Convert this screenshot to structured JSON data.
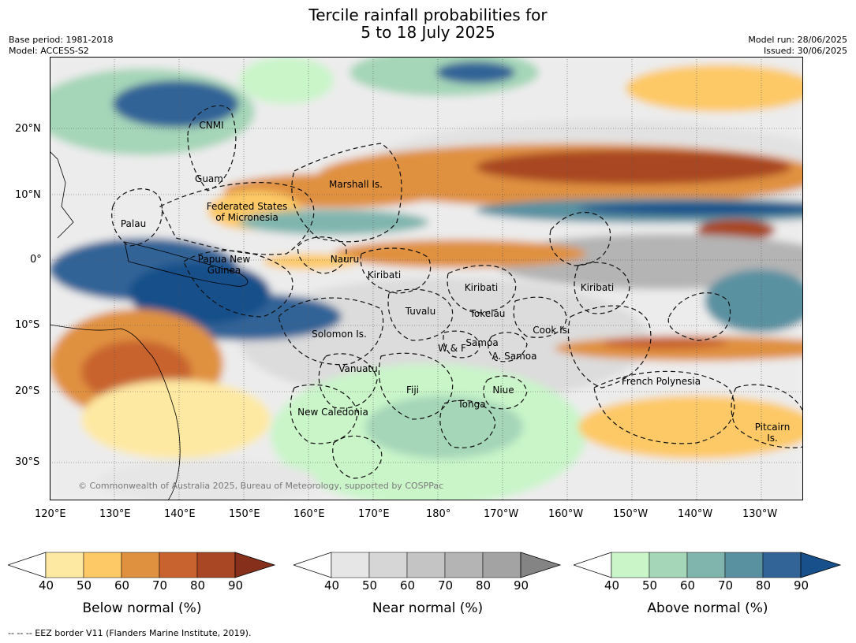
{
  "title": {
    "line1": "Tercile rainfall probabilities for",
    "line2": "5 to 18 July 2025"
  },
  "meta": {
    "base_period": "Base period: 1981-2018",
    "model": "Model: ACCESS-S2",
    "model_run": "Model run: 28/06/2025",
    "issued": "Issued: 30/06/2025"
  },
  "map": {
    "lon_labels": [
      "120°E",
      "130°E",
      "140°E",
      "150°E",
      "160°E",
      "170°E",
      "180°",
      "170°W",
      "160°W",
      "150°W",
      "140°W",
      "130°W"
    ],
    "lat_labels": [
      "20°N",
      "10°N",
      "0°",
      "10°S",
      "20°S",
      "30°S"
    ],
    "regions": [
      {
        "name": "CNMI"
      },
      {
        "name": "Guam"
      },
      {
        "name": "Palau"
      },
      {
        "name": "Federated States\nof Micronesia"
      },
      {
        "name": "Marshall Is."
      },
      {
        "name": "Papua New\nGuinea"
      },
      {
        "name": "Nauru"
      },
      {
        "name": "Kiribati"
      },
      {
        "name": "Kiribati"
      },
      {
        "name": "Kiribati"
      },
      {
        "name": "Tuvalu"
      },
      {
        "name": "Tokelau"
      },
      {
        "name": "Solomon Is."
      },
      {
        "name": "Cook Is."
      },
      {
        "name": "W & F"
      },
      {
        "name": "Samoa"
      },
      {
        "name": "A. Samoa"
      },
      {
        "name": "Vanuatu"
      },
      {
        "name": "French Polynesia"
      },
      {
        "name": "Fiji"
      },
      {
        "name": "Niue"
      },
      {
        "name": "Tonga"
      },
      {
        "name": "New Caledonia"
      },
      {
        "name": "Pitcairn\nIs."
      }
    ],
    "copyright": "© Commonwealth of Australia 2025, Bureau of Meteorology, supported by COSPPac"
  },
  "colorbars": [
    {
      "title": "Below normal (%)",
      "ticks": [
        "40",
        "50",
        "60",
        "70",
        "80",
        "90"
      ],
      "colors": [
        "#ffffff",
        "#fee9a3",
        "#fdc966",
        "#e0913f",
        "#c8632f",
        "#a94724",
        "#86301c"
      ]
    },
    {
      "title": "Near normal (%)",
      "ticks": [
        "40",
        "50",
        "60",
        "70",
        "80",
        "90"
      ],
      "colors": [
        "#ffffff",
        "#e6e6e6",
        "#d6d6d6",
        "#c4c4c4",
        "#b4b4b4",
        "#a3a3a3",
        "#848484"
      ]
    },
    {
      "title": "Above normal (%)",
      "ticks": [
        "40",
        "50",
        "60",
        "70",
        "80",
        "90"
      ],
      "colors": [
        "#ffffff",
        "#c9f5c9",
        "#a5d6b8",
        "#80b5ae",
        "#5a91a1",
        "#326497",
        "#17508a"
      ]
    }
  ],
  "footer": "--  --  -- EEZ border V11 (Flanders Marine Institute, 2019)."
}
